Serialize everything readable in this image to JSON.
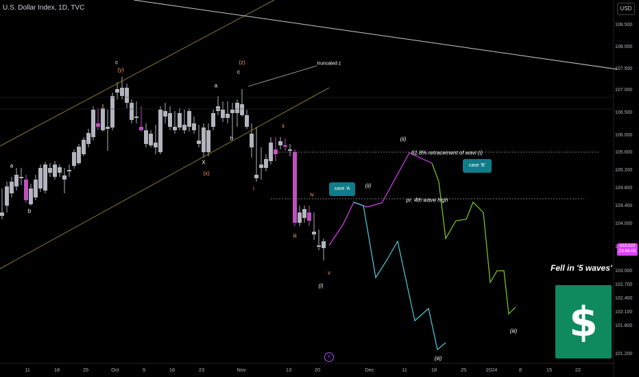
{
  "header": {
    "title": "U.S. Dollar Index, 1D, TVC",
    "currency": "USD"
  },
  "price_tag": {
    "price": "103.522",
    "countdown": "23:46:05"
  },
  "y_axis": {
    "labels": [
      "108.500",
      "108.000",
      "107.500",
      "107.000",
      "106.500",
      "106.000",
      "105.600",
      "105.200",
      "104.800",
      "104.400",
      "104.000",
      "103.500",
      "103.000",
      "102.700",
      "102.400",
      "102.100",
      "101.800",
      "101.200"
    ]
  },
  "x_axis": {
    "labels": [
      "11",
      "18",
      "25",
      "Oct",
      "9",
      "16",
      "23",
      "Nov",
      "13",
      "20",
      "Dec",
      "11",
      "18",
      "25",
      "2024",
      "8",
      "15",
      "22"
    ]
  },
  "annotations": {
    "truncated_z": "truncated z",
    "retracement": "61.8% retracement of wavi (i)",
    "prior_wave": "pr. 4th wave high",
    "case_a": "case 'A",
    "case_b": "case 'B'",
    "fell_in": "Fell in '5 waves'",
    "dollar_sign": "$"
  },
  "wave_labels": {
    "a1": "a",
    "b1": "b",
    "c_top": "c",
    "y": "(y)",
    "x": "X",
    "x_paren": "(x)",
    "a2": "a",
    "b2": "b",
    "c2": "c",
    "z": "(z)",
    "ii": "ii",
    "i": "i",
    "iii": "iii",
    "iv": "iv",
    "v": "v",
    "w_i": "(i)",
    "w_ii": "(ii)",
    "w_ii2": "(ii)",
    "w_iii": "(iii)",
    "w_iii2": "(iii)"
  },
  "colors": {
    "bull": "#b2b5be",
    "bear": "#c050c0",
    "channel": "#8a7a2a",
    "path_a": "#e040fb",
    "path_cyan": "#4dd0e1",
    "path_green": "#7ed321"
  }
}
